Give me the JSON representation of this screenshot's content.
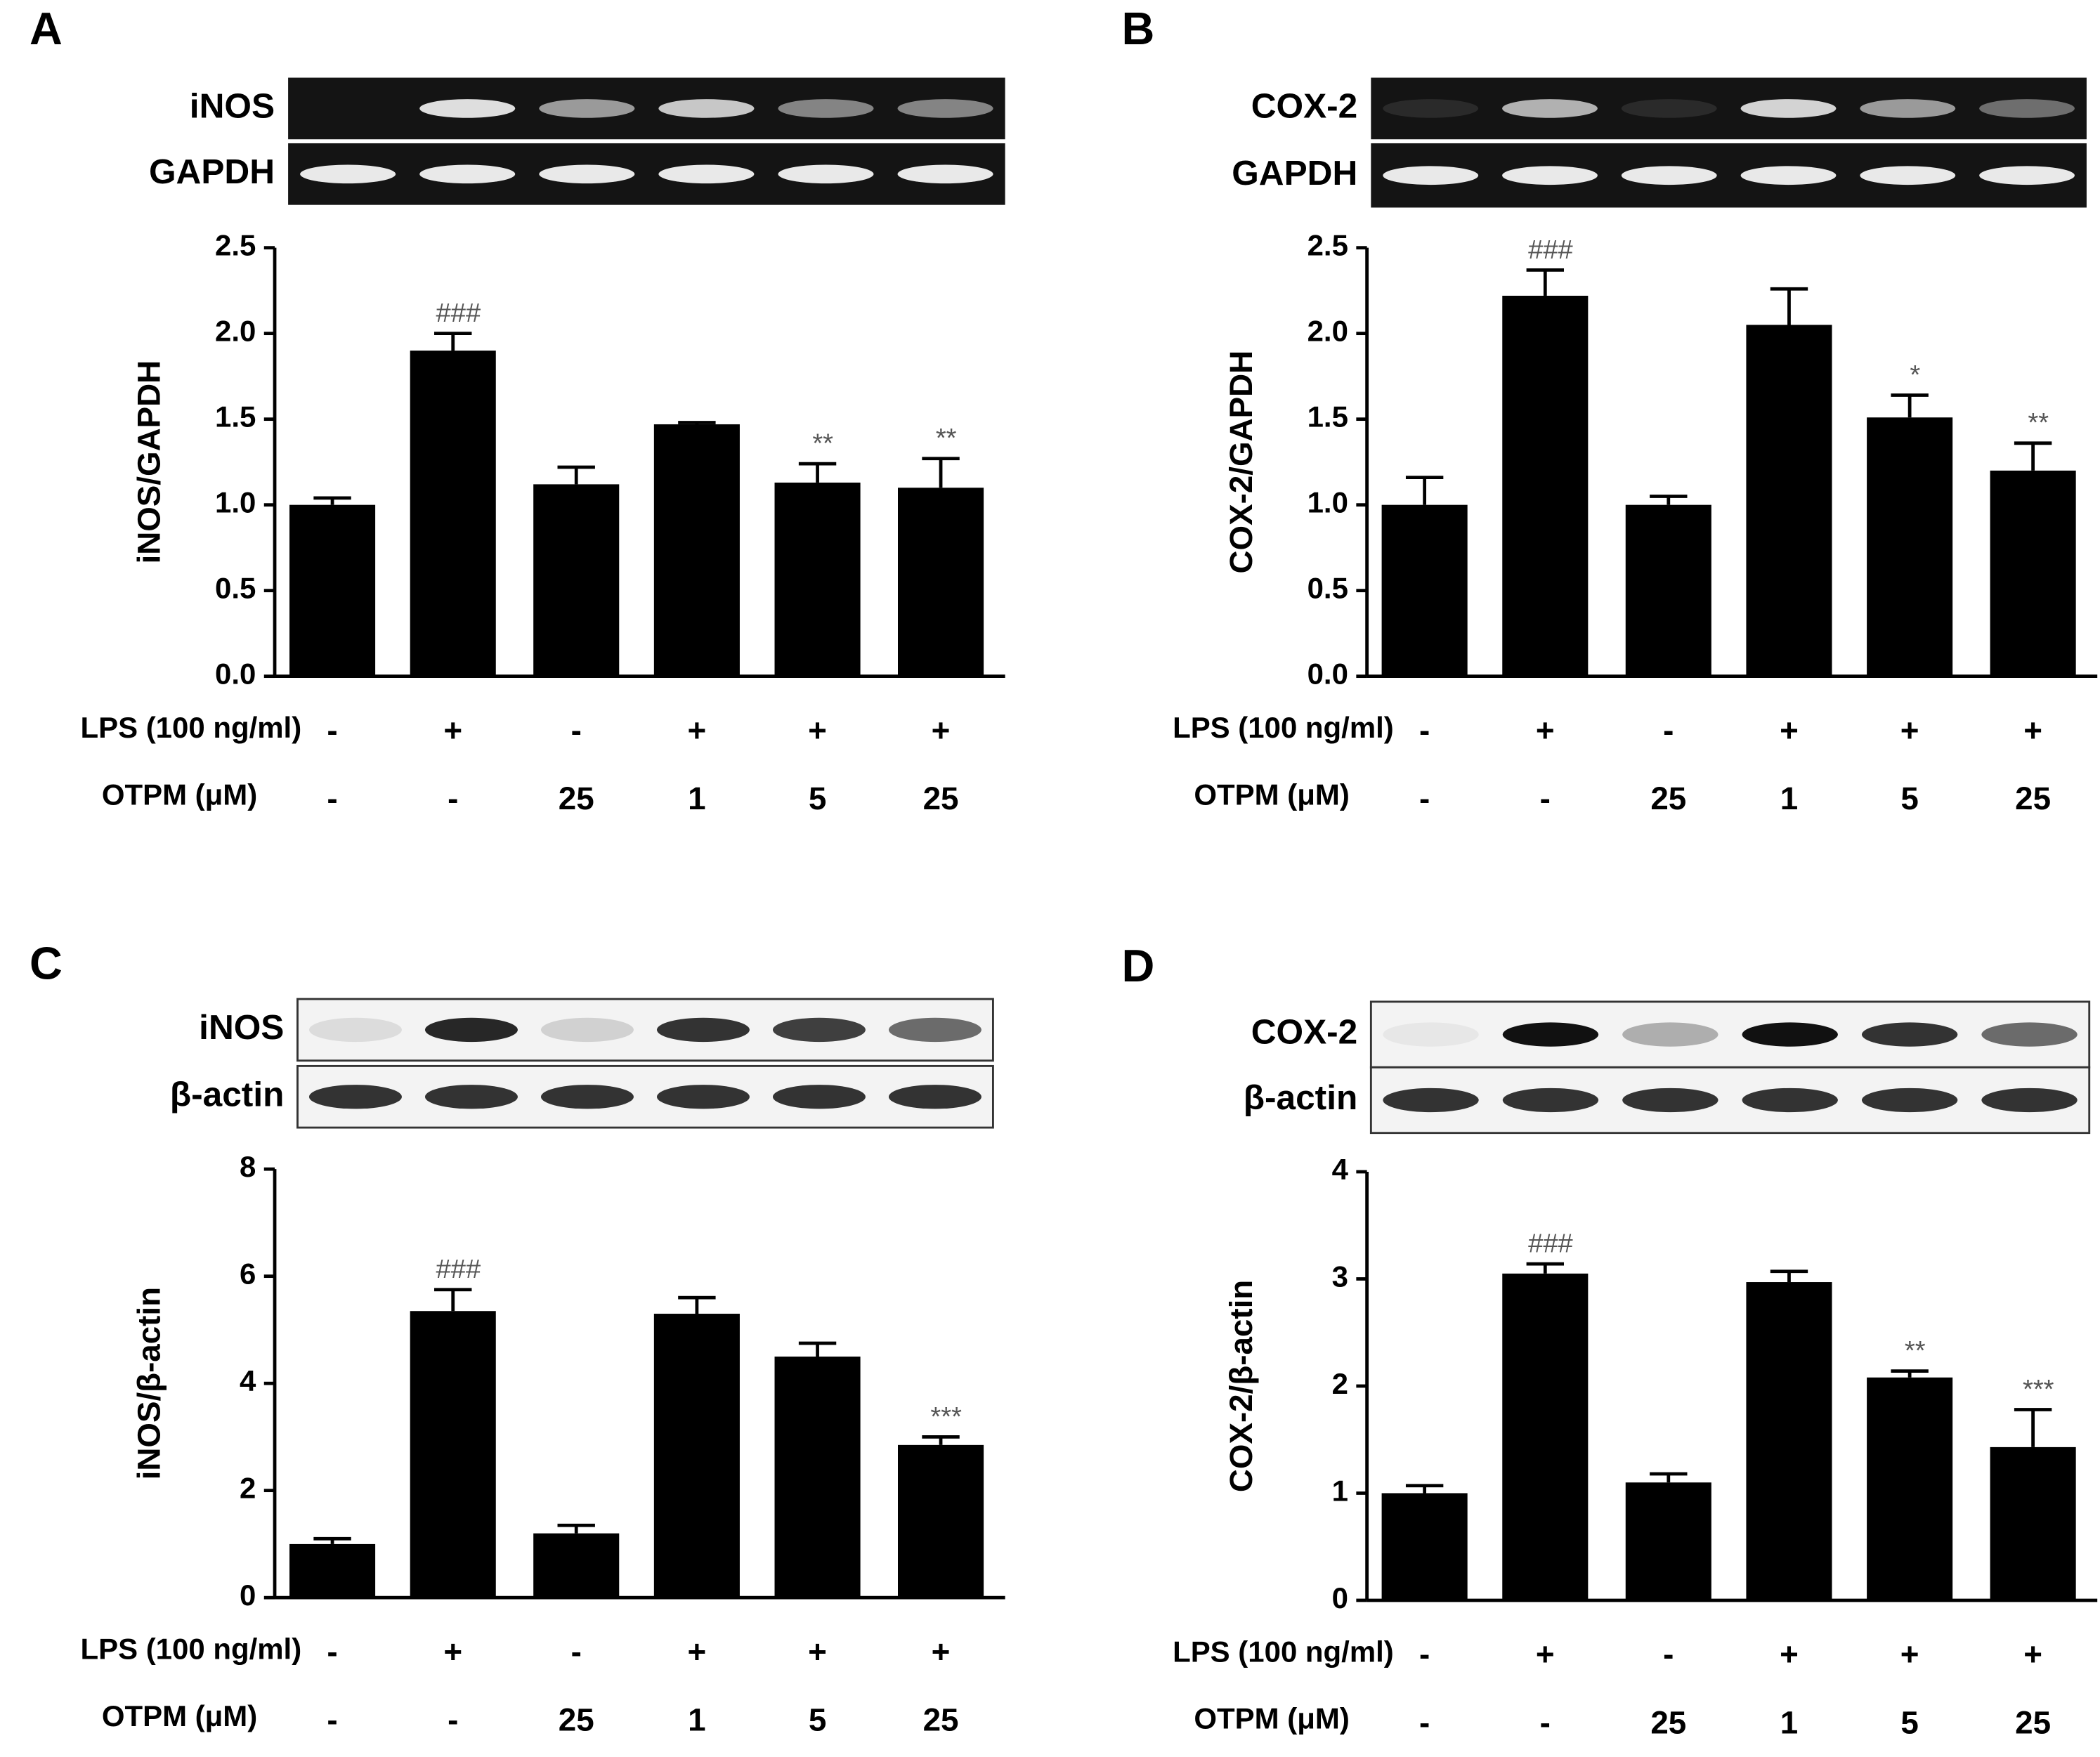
{
  "chart_data": [
    {
      "type": "bar",
      "panel": "A",
      "blot_labels": [
        "iNOS",
        "GAPDH"
      ],
      "ylabel": "iNOS/GAPDH",
      "row_labels": [
        "LPS (100 ng/ml)",
        "OTPM (μM)"
      ],
      "lps": [
        "-",
        "+",
        "-",
        "+",
        "+",
        "+"
      ],
      "otpm": [
        "-",
        "-",
        "25",
        "1",
        "5",
        "25"
      ],
      "values": [
        1.0,
        1.9,
        1.12,
        1.47,
        1.13,
        1.1
      ],
      "errors": [
        0.04,
        0.1,
        0.1,
        0.01,
        0.11,
        0.17
      ],
      "annotations": [
        null,
        "###",
        null,
        null,
        "**",
        "**"
      ],
      "color": "#000000",
      "ylim": [
        0,
        2.5
      ],
      "yticks": [
        {
          "value": 0,
          "label": "0.0"
        },
        0.5,
        {
          "value": 1,
          "label": "1.0"
        },
        1.5,
        {
          "value": 2,
          "label": "2.0"
        },
        2.5
      ]
    },
    {
      "type": "bar",
      "panel": "B",
      "blot_labels": [
        "COX-2",
        "GAPDH"
      ],
      "ylabel": "COX-2/GAPDH",
      "row_labels": [
        "LPS (100 ng/ml)",
        "OTPM (μM)"
      ],
      "lps": [
        "-",
        "+",
        "-",
        "+",
        "+",
        "+"
      ],
      "otpm": [
        "-",
        "-",
        "25",
        "1",
        "5",
        "25"
      ],
      "values": [
        1.0,
        2.22,
        1.0,
        2.05,
        1.51,
        1.2
      ],
      "errors": [
        0.16,
        0.15,
        0.05,
        0.21,
        0.13,
        0.16
      ],
      "annotations": [
        null,
        "###",
        null,
        null,
        "*",
        "**"
      ],
      "color": "#000000",
      "ylim": [
        0,
        2.5
      ],
      "yticks": [
        {
          "value": 0,
          "label": "0.0"
        },
        0.5,
        {
          "value": 1,
          "label": "1.0"
        },
        1.5,
        {
          "value": 2,
          "label": "2.0"
        },
        2.5
      ]
    },
    {
      "type": "bar",
      "panel": "C",
      "blot_labels": [
        "iNOS",
        "β-actin"
      ],
      "ylabel": "iNOS/β-actin",
      "row_labels": [
        "LPS (100 ng/ml)",
        "OTPM (μM)"
      ],
      "lps": [
        "-",
        "+",
        "-",
        "+",
        "+",
        "+"
      ],
      "otpm": [
        "-",
        "-",
        "25",
        "1",
        "5",
        "25"
      ],
      "values": [
        1.0,
        5.35,
        1.2,
        5.3,
        4.5,
        2.85
      ],
      "errors": [
        0.1,
        0.4,
        0.15,
        0.3,
        0.25,
        0.15
      ],
      "annotations": [
        null,
        "###",
        null,
        null,
        null,
        "***"
      ],
      "color": "#000000",
      "ylim": [
        0,
        8
      ],
      "yticks": [
        0,
        2,
        4,
        6,
        8
      ]
    },
    {
      "type": "bar",
      "panel": "D",
      "blot_labels": [
        "COX-2",
        "β-actin"
      ],
      "ylabel": "COX-2/β-actin",
      "row_labels": [
        "LPS (100 ng/ml)",
        "OTPM (μM)"
      ],
      "lps": [
        "-",
        "+",
        "-",
        "+",
        "+",
        "+"
      ],
      "otpm": [
        "-",
        "-",
        "25",
        "1",
        "5",
        "25"
      ],
      "values": [
        1.0,
        3.05,
        1.1,
        2.97,
        2.08,
        1.43
      ],
      "errors": [
        0.07,
        0.09,
        0.08,
        0.1,
        0.06,
        0.35
      ],
      "annotations": [
        null,
        "###",
        null,
        null,
        "**",
        "***"
      ],
      "color": "#000000",
      "ylim": [
        0,
        4
      ],
      "yticks": [
        0,
        1,
        2,
        3,
        4
      ]
    }
  ]
}
